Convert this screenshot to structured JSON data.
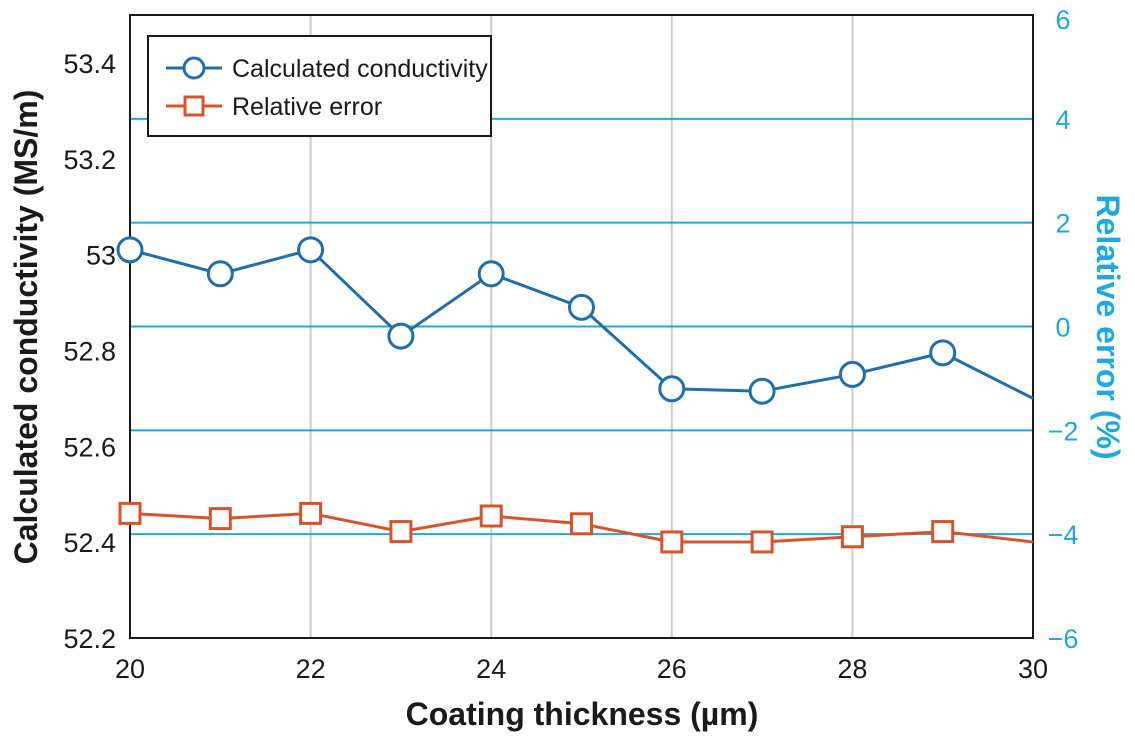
{
  "chart_data": {
    "type": "line",
    "x": [
      20,
      21,
      22,
      23,
      24,
      25,
      26,
      27,
      28,
      29,
      30
    ],
    "xlim": [
      20,
      30
    ],
    "x_ticks": [
      20,
      22,
      24,
      26,
      28,
      30
    ],
    "x_tick_labels": [
      "20",
      "22",
      "24",
      "26",
      "28",
      "30"
    ],
    "xlabel": "Coating thickness (µm)",
    "ylabel_left": "Calculated conductivity (MS/m)",
    "ylim_left": [
      52.2,
      53.5
    ],
    "y_ticks_left": [
      52.2,
      52.4,
      52.6,
      52.8,
      53.0,
      53.2,
      53.4
    ],
    "y_tick_labels_left": [
      "52.2",
      "52.4",
      "52.6",
      "52.8",
      "53",
      "53.2",
      "53.4"
    ],
    "ylabel_right": "Relative error (%)",
    "ylim_right": [
      -6,
      6
    ],
    "y_ticks_right": [
      -6,
      -4,
      -2,
      0,
      2,
      4,
      6
    ],
    "y_tick_labels_right": [
      "−6",
      "−4",
      "−2",
      "0",
      "2",
      "4",
      "6"
    ],
    "grid": true,
    "legend_position": "top-left",
    "series": [
      {
        "name": "Calculated conductivity",
        "axis": "left",
        "color": "#1f6fad",
        "marker": "circle",
        "values": [
          53.01,
          52.96,
          53.01,
          52.83,
          52.96,
          52.89,
          52.72,
          52.715,
          52.75,
          52.795,
          52.7
        ]
      },
      {
        "name": "Relative error",
        "axis": "right",
        "color": "#d9532a",
        "marker": "square",
        "values": [
          -3.6,
          -3.7,
          -3.6,
          -3.95,
          -3.65,
          -3.8,
          -4.15,
          -4.15,
          -4.05,
          -3.95,
          -4.15
        ]
      }
    ],
    "colors": {
      "right_axis": "#1fa8dc",
      "vertical_grid": "#cccccc",
      "horizontal_grid": "#1fa8dc"
    }
  }
}
